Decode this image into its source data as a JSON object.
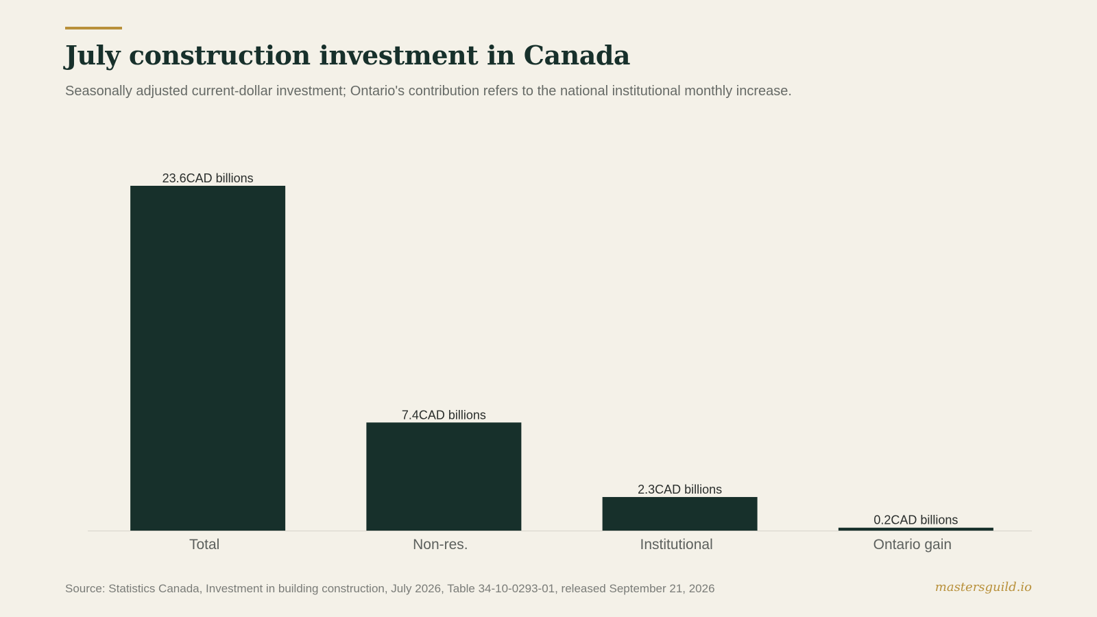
{
  "header": {
    "title": "July construction investment in Canada",
    "subtitle": "Seasonally adjusted current-dollar investment; Ontario's contribution refers to the national institutional monthly increase."
  },
  "footer": {
    "source": "Source: Statistics Canada, Investment in building construction, July 2026, Table 34-10-0293-01, released September 21, 2026",
    "brand": "mastersguild.io"
  },
  "colors": {
    "background": "#f4f1e8",
    "bar": "#17302b",
    "accent": "#b8903a",
    "axis": "#d6d3ca"
  },
  "chart_data": {
    "type": "bar",
    "title": "July construction investment in Canada",
    "subtitle": "Seasonally adjusted current-dollar investment; Ontario's contribution refers to the national institutional monthly increase.",
    "categories": [
      "Total",
      "Non-res.",
      "Institutional",
      "Ontario gain"
    ],
    "values": [
      23.6,
      7.4,
      2.3,
      0.2
    ],
    "value_unit": "CAD billions",
    "value_labels": [
      "23.6CAD billions",
      "7.4CAD billions",
      "2.3CAD billions",
      "0.2CAD billions"
    ],
    "ylim": [
      0,
      23.6
    ],
    "grid": false,
    "legend": "none"
  }
}
